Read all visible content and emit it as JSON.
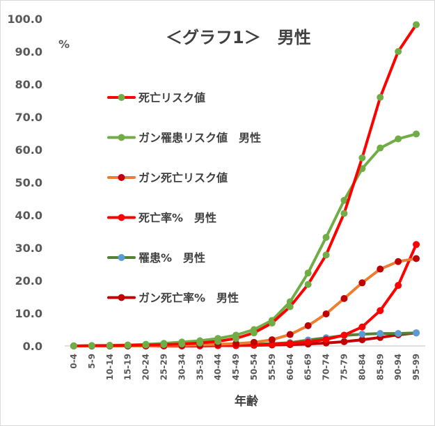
{
  "chart_data": {
    "type": "line",
    "title": "＜グラフ1＞　男性",
    "ylabel": "%",
    "xlabel": "年齢",
    "ylim": [
      0,
      100
    ],
    "yticks": [
      "0.0",
      "10.0",
      "20.0",
      "30.0",
      "40.0",
      "50.0",
      "60.0",
      "70.0",
      "80.0",
      "90.0",
      "100.0"
    ],
    "categories": [
      "0-4",
      "5-9",
      "10-14",
      "15-19",
      "20-24",
      "25-29",
      "30-34",
      "35-39",
      "40-44",
      "45-49",
      "50-54",
      "55-59",
      "60-64",
      "65-69",
      "70-74",
      "75-79",
      "80-84",
      "85-89",
      "90-94",
      "95-99"
    ],
    "grid": false,
    "legend_position": "left",
    "series": [
      {
        "name": "死亡リスク値",
        "line_color": "#ff0000",
        "marker_color": "#70ad47",
        "values": [
          0,
          0.1,
          0.1,
          0.2,
          0.3,
          0.4,
          0.6,
          0.9,
          1.4,
          2.3,
          4.0,
          7.0,
          12.0,
          18.8,
          27.8,
          40.5,
          57.5,
          76.0,
          90.0,
          98.2
        ]
      },
      {
        "name": "ガン罹患リスク値　男性",
        "line_color": "#70ad47",
        "marker_color": "#70ad47",
        "values": [
          0,
          0.1,
          0.2,
          0.3,
          0.5,
          0.8,
          1.2,
          1.6,
          2.3,
          3.3,
          5.0,
          7.8,
          13.5,
          22.3,
          33.2,
          44.5,
          54.2,
          60.5,
          63.3,
          64.8
        ]
      },
      {
        "name": "ガン死亡リスク値",
        "line_color": "#ed7d31",
        "marker_color": "#c00000",
        "values": [
          0,
          0,
          0,
          0,
          0,
          0.1,
          0.2,
          0.3,
          0.5,
          0.7,
          1.1,
          1.9,
          3.5,
          6.2,
          9.8,
          14.5,
          19.3,
          23.5,
          25.8,
          26.7
        ]
      },
      {
        "name": "死亡率%　男性",
        "line_color": "#ff0000",
        "marker_color": "#ff0000",
        "values": [
          0,
          0,
          0,
          0,
          0,
          0,
          0,
          0.1,
          0.1,
          0.2,
          0.3,
          0.5,
          0.8,
          1.2,
          2.0,
          3.3,
          5.8,
          10.8,
          18.5,
          31.0
        ]
      },
      {
        "name": "罹患%　男性",
        "line_color": "#548235",
        "marker_color": "#5b9bd5",
        "values": [
          0,
          0,
          0,
          0,
          0,
          0,
          0.1,
          0.1,
          0.2,
          0.3,
          0.5,
          0.7,
          1.0,
          1.8,
          2.5,
          3.2,
          3.6,
          3.8,
          3.8,
          4.0
        ]
      },
      {
        "name": "ガン死亡率%　男性",
        "line_color": "#c00000",
        "marker_color": "#c00000",
        "values": [
          0,
          0,
          0,
          0,
          0,
          0,
          0,
          0,
          0.1,
          0.1,
          0.2,
          0.3,
          0.4,
          0.6,
          0.9,
          1.3,
          1.9,
          2.6,
          3.4,
          4.0
        ]
      }
    ]
  }
}
